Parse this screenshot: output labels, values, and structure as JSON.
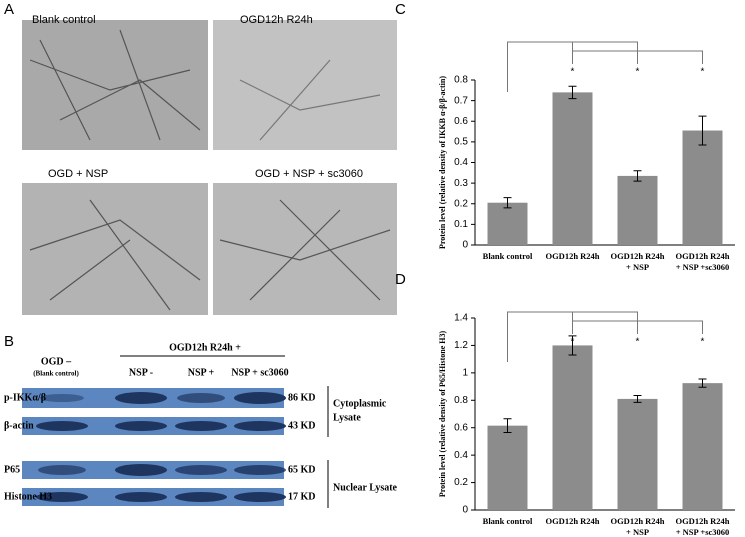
{
  "panel_a": {
    "label": "A",
    "images": [
      "Blank control",
      "OGD12h R24h",
      "OGD + NSP",
      "OGD + NSP + sc3060"
    ]
  },
  "panel_b": {
    "label": "B",
    "group_control": [
      "OGD –",
      "(Blank control)"
    ],
    "group_treated": "OGD12h R24h +",
    "lanes": [
      "NSP -",
      "NSP +",
      "NSP + sc3060"
    ],
    "rows": [
      {
        "name": "p-IKKα/β",
        "size": "86 KD"
      },
      {
        "name": "β-actin",
        "size": "43 KD"
      },
      {
        "name": "P65",
        "size": "65 KD"
      },
      {
        "name": "Histone H3",
        "size": "17 KD"
      }
    ],
    "fractions": [
      [
        "Cytoplasmic",
        "Lysate"
      ],
      [
        "Nuclear Lysate"
      ]
    ]
  },
  "chart_data": [
    {
      "type": "bar",
      "label": "C",
      "y_label": "Protein level (relative density of IKKB α-β/β-actin)",
      "categories": [
        [
          "Blank control"
        ],
        [
          "OGD12h R24h"
        ],
        [
          "OGD12h R24h",
          "+ NSP"
        ],
        [
          "OGD12h R24h",
          "+ NSP +sc3060"
        ]
      ],
      "values": [
        0.205,
        0.74,
        0.335,
        0.555
      ],
      "errors": [
        0.025,
        0.03,
        0.025,
        0.07
      ],
      "markers": [
        null,
        "*",
        "*",
        "*"
      ],
      "color": "#8c8c8c",
      "ylim": [
        0,
        0.8
      ],
      "yticks": [
        0,
        0.1,
        0.2,
        0.3,
        0.4,
        0.5,
        0.6,
        0.7,
        0.8
      ]
    },
    {
      "type": "bar",
      "label": "D",
      "y_label": "Protein level (relative density of P65/Histone H3)",
      "categories": [
        [
          "Blank control"
        ],
        [
          "OGD12h R24h"
        ],
        [
          "OGD12h R24h",
          "+ NSP"
        ],
        [
          "OGD12h R24h",
          "+ NSP +sc3060"
        ]
      ],
      "values": [
        0.615,
        1.2,
        0.81,
        0.925
      ],
      "errors": [
        0.05,
        0.07,
        0.025,
        0.03
      ],
      "markers": [
        null,
        "*",
        "*",
        "*"
      ],
      "color": "#8c8c8c",
      "ylim": [
        0,
        1.4
      ],
      "yticks": [
        0,
        0.2,
        0.4,
        0.6,
        0.8,
        1,
        1.2,
        1.4
      ]
    }
  ]
}
